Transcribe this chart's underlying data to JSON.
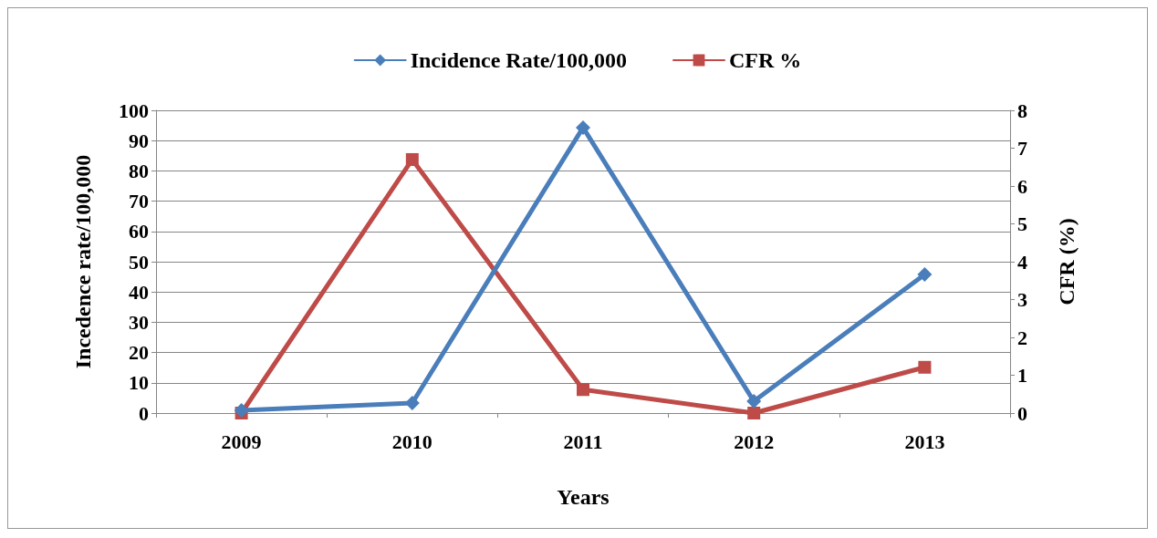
{
  "chart_data": {
    "type": "line",
    "categories": [
      "2009",
      "2010",
      "2011",
      "2012",
      "2013"
    ],
    "xlabel": "Years",
    "ylabel": "Incedence rate/100,000",
    "y2label": "CFR (%)",
    "series": [
      {
        "name": "Incidence Rate/100,000",
        "color": "#4a7ebb",
        "marker": "diamond",
        "values": [
          0.9,
          3.3,
          94.3,
          3.9,
          45.8
        ]
      },
      {
        "name": "CFR %",
        "color": "#be4b48",
        "marker": "square",
        "axis": "y2",
        "values": [
          0,
          6.7,
          0.62,
          0,
          1.21
        ]
      }
    ],
    "ylim": [
      0,
      100
    ],
    "yticks": [
      0,
      10,
      20,
      30,
      40,
      50,
      60,
      70,
      80,
      90,
      100
    ],
    "y2lim": [
      0,
      8
    ],
    "y2ticks": [
      0,
      1,
      2,
      3,
      4,
      5,
      6,
      7,
      8
    ],
    "grid": "y",
    "legend": "top",
    "line_style": "solid"
  }
}
